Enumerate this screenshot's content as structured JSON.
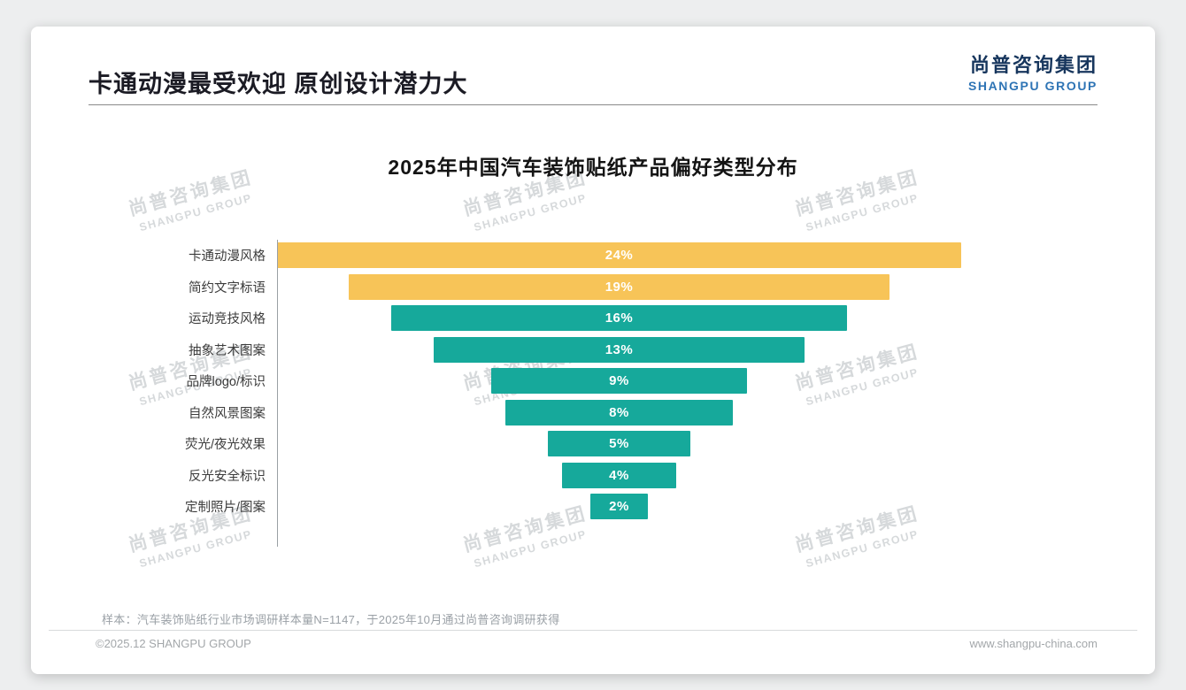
{
  "page": {
    "title": "卡通动漫最受欢迎 原创设计潜力大",
    "logo": {
      "cn": "尚普咨询集团",
      "en": "SHANGPU GROUP"
    },
    "watermark": {
      "cn": "尚普咨询集团",
      "en": "SHANGPU GROUP"
    },
    "footer": {
      "note": "样本：汽车装饰贴纸行业市场调研样本量N=1147，于2025年10月通过尚普咨询调研获得",
      "copyright": "©2025.12 SHANGPU GROUP",
      "website": "www.shangpu-china.com"
    }
  },
  "chart_data": {
    "type": "bar",
    "subtype": "centered-funnel",
    "title": "2025年中国汽车装饰贴纸产品偏好类型分布",
    "orientation": "horizontal",
    "categories": [
      "卡通动漫风格",
      "简约文字标语",
      "运动竞技风格",
      "抽象艺术图案",
      "品牌logo/标识",
      "自然风景图案",
      "荧光/夜光效果",
      "反光安全标识",
      "定制照片/图案"
    ],
    "values": [
      24,
      19,
      16,
      13,
      9,
      8,
      5,
      4,
      2
    ],
    "labels": [
      "24%",
      "19%",
      "16%",
      "13%",
      "9%",
      "8%",
      "5%",
      "4%",
      "2%"
    ],
    "colors": [
      "#F7C458",
      "#F7C458",
      "#16A99B",
      "#16A99B",
      "#16A99B",
      "#16A99B",
      "#16A99B",
      "#16A99B",
      "#16A99B"
    ],
    "highlight_color": "#F7C458",
    "base_color": "#16A99B",
    "value_label_color": "#ffffff",
    "xlim": [
      0,
      24
    ],
    "grid": false,
    "legend": false
  }
}
